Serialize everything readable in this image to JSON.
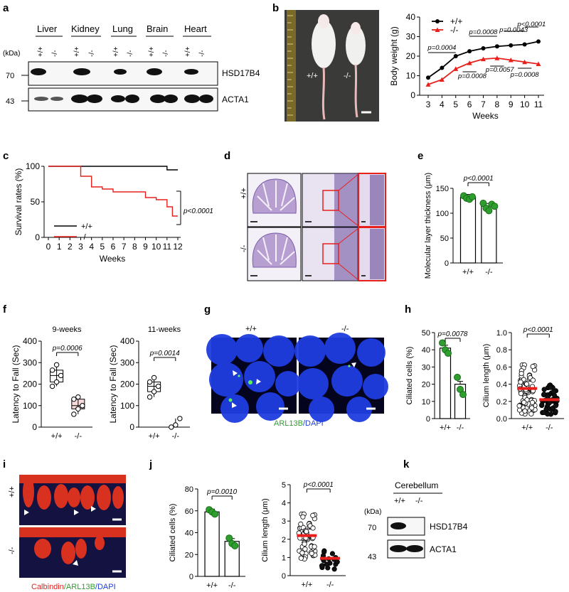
{
  "panels": {
    "a": "a",
    "b": "b",
    "c": "c",
    "d": "d",
    "e": "e",
    "f": "f",
    "g": "g",
    "h": "h",
    "i": "i",
    "j": "j",
    "k": "k"
  },
  "common": {
    "wt": "+/+",
    "ko": "-/-",
    "kda": "(kDa)",
    "hsd": "HSD17B4",
    "acta": "ACTA1"
  },
  "a": {
    "tissues": [
      "Liver",
      "Kidney",
      "Lung",
      "Brain",
      "Heart"
    ],
    "mw": [
      "70",
      "43"
    ]
  },
  "b": {
    "photo_wt": "+/+",
    "photo_ko": "-/-",
    "legend": [
      "+/+",
      "-/-"
    ],
    "pvalues": [
      "p=0.0004",
      "p=0.0008",
      "p=0.0043",
      "p<0.0001",
      "p=0.0008",
      "p=0.0057",
      "p=0.0008"
    ]
  },
  "c": {
    "pvalue": "p<0.0001",
    "legend": [
      "+/+",
      "-/-"
    ]
  },
  "d": {
    "rows": [
      "+/+",
      "-/-"
    ]
  },
  "e": {
    "pvalue": "p<0.0001"
  },
  "f": {
    "titles": [
      "9-weeks",
      "11-weeks"
    ],
    "pvalues": [
      "p=0.0006",
      "p=0.0014"
    ]
  },
  "g": {
    "cols": [
      "+/+",
      "-/-"
    ],
    "caption_green": "ARL13B",
    "caption_blue": "/DAPI"
  },
  "h": {
    "pvalues": [
      "p=0.0078",
      "p<0.0001"
    ]
  },
  "i": {
    "rows": [
      "+/+",
      "-/-"
    ],
    "caption_red": "Calbindin",
    "caption_green": "/ARL13B",
    "caption_blue": "/DAPI"
  },
  "j": {
    "pvalues": [
      "p=0.0010",
      "p<0.0001"
    ]
  },
  "k": {
    "tissue": "Cerebellum",
    "mw": [
      "70",
      "43"
    ]
  },
  "colors": {
    "wt": "#000000",
    "ko": "#e8201c",
    "green": "#2e9e2e",
    "dapi": "#1f3de0"
  },
  "chart_data": [
    {
      "panel": "b",
      "type": "line",
      "x": [
        3,
        4,
        5,
        6,
        7,
        8,
        9,
        10,
        11
      ],
      "xlabel": "Weeks",
      "ylabel": "Body weight (g)",
      "ylim": [
        0,
        40
      ],
      "xticks": [
        "3",
        "4",
        "5",
        "6",
        "7",
        "8",
        "9",
        "10",
        "11"
      ],
      "yticks": [
        "0",
        "10",
        "20",
        "30",
        "40"
      ],
      "series": [
        {
          "name": "+/+",
          "values": [
            9,
            14,
            20,
            22.5,
            24,
            25,
            25.5,
            26,
            27.5
          ]
        },
        {
          "name": "-/-",
          "values": [
            5.5,
            8,
            13.5,
            16.5,
            18.5,
            19,
            18,
            17,
            16
          ]
        }
      ]
    },
    {
      "panel": "c",
      "type": "line",
      "xlabel": "Weeks",
      "ylabel": "Survival rates (%)",
      "ylim": [
        0,
        100
      ],
      "xlim": [
        0,
        12
      ],
      "xticks": [
        "0",
        "1",
        "2",
        "3",
        "4",
        "5",
        "6",
        "7",
        "8",
        "9",
        "10",
        "11",
        "12"
      ],
      "yticks": [
        "0",
        "50",
        "100"
      ],
      "series": [
        {
          "name": "+/+",
          "x": [
            0,
            11,
            11,
            12
          ],
          "values": [
            100,
            100,
            95,
            95
          ]
        },
        {
          "name": "-/-",
          "x": [
            0,
            3,
            3,
            4,
            4,
            5,
            5,
            6,
            6,
            9,
            9,
            10,
            10,
            11,
            11,
            11.5,
            11.5,
            12
          ],
          "values": [
            100,
            100,
            86,
            86,
            71,
            71,
            68,
            68,
            64,
            64,
            56,
            56,
            53,
            53,
            43,
            43,
            30,
            30
          ]
        }
      ]
    },
    {
      "panel": "e",
      "type": "bar",
      "categories": [
        "+/+",
        "-/-"
      ],
      "values": [
        132,
        114
      ],
      "ylabel": "Molecular layer thickness (μm)",
      "ylim": [
        0,
        150
      ],
      "yticks": [
        "0",
        "50",
        "100",
        "150"
      ],
      "points": [
        [
          135,
          130,
          128,
          133
        ],
        [
          120,
          110,
          105,
          118,
          114
        ]
      ]
    },
    {
      "panel": "f1",
      "type": "box",
      "title": "9-weeks",
      "categories": [
        "+/+",
        "-/-"
      ],
      "ylabel": "Latency to Fall (Sec)",
      "ylim": [
        0,
        400
      ],
      "yticks": [
        "0",
        "100",
        "200",
        "300",
        "400"
      ],
      "points": [
        [
          190,
          210,
          240,
          265,
          290
        ],
        [
          60,
          85,
          100,
          130,
          140
        ]
      ]
    },
    {
      "panel": "f2",
      "type": "box",
      "title": "11-weeks",
      "categories": [
        "+/+",
        "-/-"
      ],
      "ylabel": "Latency to Fall (Sec)",
      "ylim": [
        0,
        400
      ],
      "yticks": [
        "0",
        "100",
        "200",
        "300",
        "400"
      ],
      "points": [
        [
          140,
          165,
          190,
          210,
          230
        ],
        [
          0,
          10,
          40
        ]
      ]
    },
    {
      "panel": "h1",
      "type": "bar",
      "categories": [
        "+/+",
        "-/-"
      ],
      "values": [
        41,
        20
      ],
      "ylabel": "Ciliated cells (%)",
      "ylim": [
        0,
        50
      ],
      "yticks": [
        "0",
        "10",
        "20",
        "30",
        "40",
        "50"
      ],
      "points": [
        [
          44,
          40,
          38
        ],
        [
          24,
          17,
          14
        ]
      ]
    },
    {
      "panel": "h2",
      "type": "scatter",
      "categories": [
        "+/+",
        "-/-"
      ],
      "values": [
        0.35,
        0.22
      ],
      "ylabel": "Cilium length (μm)",
      "ylim": [
        0,
        1.0
      ],
      "yticks": [
        "0.0",
        "0.2",
        "0.4",
        "0.6",
        "0.8",
        "1.0"
      ]
    },
    {
      "panel": "j1",
      "type": "bar",
      "categories": [
        "+/+",
        "-/-"
      ],
      "values": [
        59,
        32
      ],
      "ylabel": "Ciliated cells (%)",
      "ylim": [
        0,
        80
      ],
      "yticks": [
        "0",
        "20",
        "40",
        "60",
        "80"
      ],
      "points": [
        [
          61,
          59,
          57
        ],
        [
          35,
          30,
          28
        ]
      ]
    },
    {
      "panel": "j2",
      "type": "scatter",
      "categories": [
        "+/+",
        "-/-"
      ],
      "values": [
        2.2,
        0.95
      ],
      "ylabel": "Cilium length (μm)",
      "ylim": [
        0,
        5
      ],
      "yticks": [
        "0",
        "1",
        "2",
        "3",
        "4",
        "5"
      ]
    }
  ]
}
